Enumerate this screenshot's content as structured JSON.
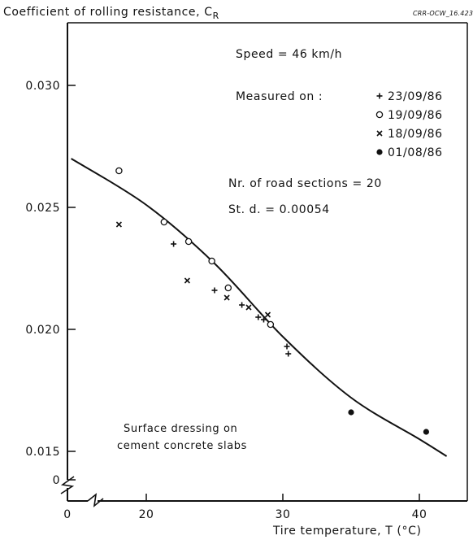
{
  "chart_data": {
    "type": "scatter",
    "title": "Coefficient of rolling resistance, C",
    "title_subscript": "R",
    "figure_tag": "CRR-OCW_16.423",
    "xlabel": "Tire temperature, T (°C)",
    "ylabel": "",
    "xlim": [
      0,
      43
    ],
    "ylim_break": [
      0,
      0.0145
    ],
    "ylim": [
      0.0145,
      0.0328
    ],
    "x_ticks": [
      "0",
      "20",
      "30",
      "40"
    ],
    "y_ticks": [
      "0",
      "0.015",
      "0.020",
      "0.025",
      "0.030"
    ],
    "grid": false,
    "legend": {
      "title": "Measured on :",
      "entries": [
        {
          "marker": "+",
          "label": "23/09/86"
        },
        {
          "marker": "○",
          "label": "19/09/86"
        },
        {
          "marker": "×",
          "label": "18/09/86"
        },
        {
          "marker": "•",
          "label": "01/08/86"
        }
      ]
    },
    "annotations": {
      "speed": "Speed = 46 km/h",
      "sections": "Nr. of road sections = 20",
      "std": "St. d. = 0.00054",
      "surface_line1": "Surface dressing on",
      "surface_line2": "cement concrete slabs"
    },
    "series": [
      {
        "marker": "+",
        "points": [
          [
            22.0,
            0.0235
          ],
          [
            25.0,
            0.0216
          ],
          [
            27.0,
            0.021
          ],
          [
            28.2,
            0.0205
          ],
          [
            28.6,
            0.0204
          ],
          [
            30.3,
            0.0193
          ],
          [
            30.4,
            0.019
          ]
        ]
      },
      {
        "marker": "○",
        "points": [
          [
            18.0,
            0.0265
          ],
          [
            21.3,
            0.0244
          ],
          [
            23.1,
            0.0236
          ],
          [
            24.8,
            0.0228
          ],
          [
            26.0,
            0.0217
          ],
          [
            29.1,
            0.0202
          ]
        ]
      },
      {
        "marker": "×",
        "points": [
          [
            18.0,
            0.0243
          ],
          [
            23.0,
            0.022
          ],
          [
            25.9,
            0.0213
          ],
          [
            27.5,
            0.0209
          ],
          [
            28.9,
            0.0206
          ]
        ]
      },
      {
        "marker": "•",
        "points": [
          [
            35.0,
            0.0166
          ],
          [
            40.5,
            0.0158
          ]
        ]
      }
    ],
    "fit_curve": [
      [
        14.5,
        0.027
      ],
      [
        20,
        0.0251
      ],
      [
        25,
        0.0227
      ],
      [
        30,
        0.0197
      ],
      [
        35,
        0.0172
      ],
      [
        40,
        0.0155
      ],
      [
        42,
        0.0148
      ]
    ]
  }
}
